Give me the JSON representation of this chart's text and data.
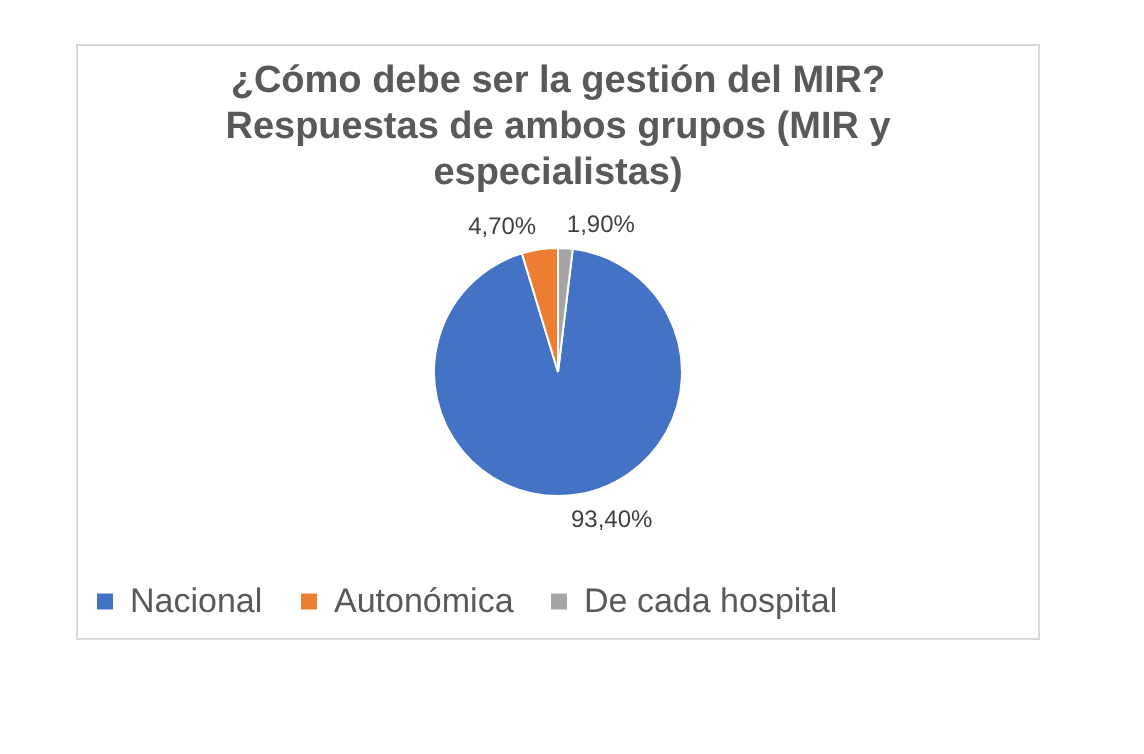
{
  "chart_data": {
    "type": "pie",
    "title": "¿Cómo debe ser la gestión del MIR? Respuestas de ambos grupos (MIR y especialistas)",
    "categories": [
      "Nacional",
      "Autonómica",
      "De cada hospital"
    ],
    "values": [
      93.4,
      4.7,
      1.9
    ],
    "colors": [
      "#4472c4",
      "#ed7d31",
      "#a5a5a5"
    ],
    "value_labels": [
      "93,40%",
      "4,70%",
      "1,90%"
    ],
    "legend": "bottom"
  }
}
